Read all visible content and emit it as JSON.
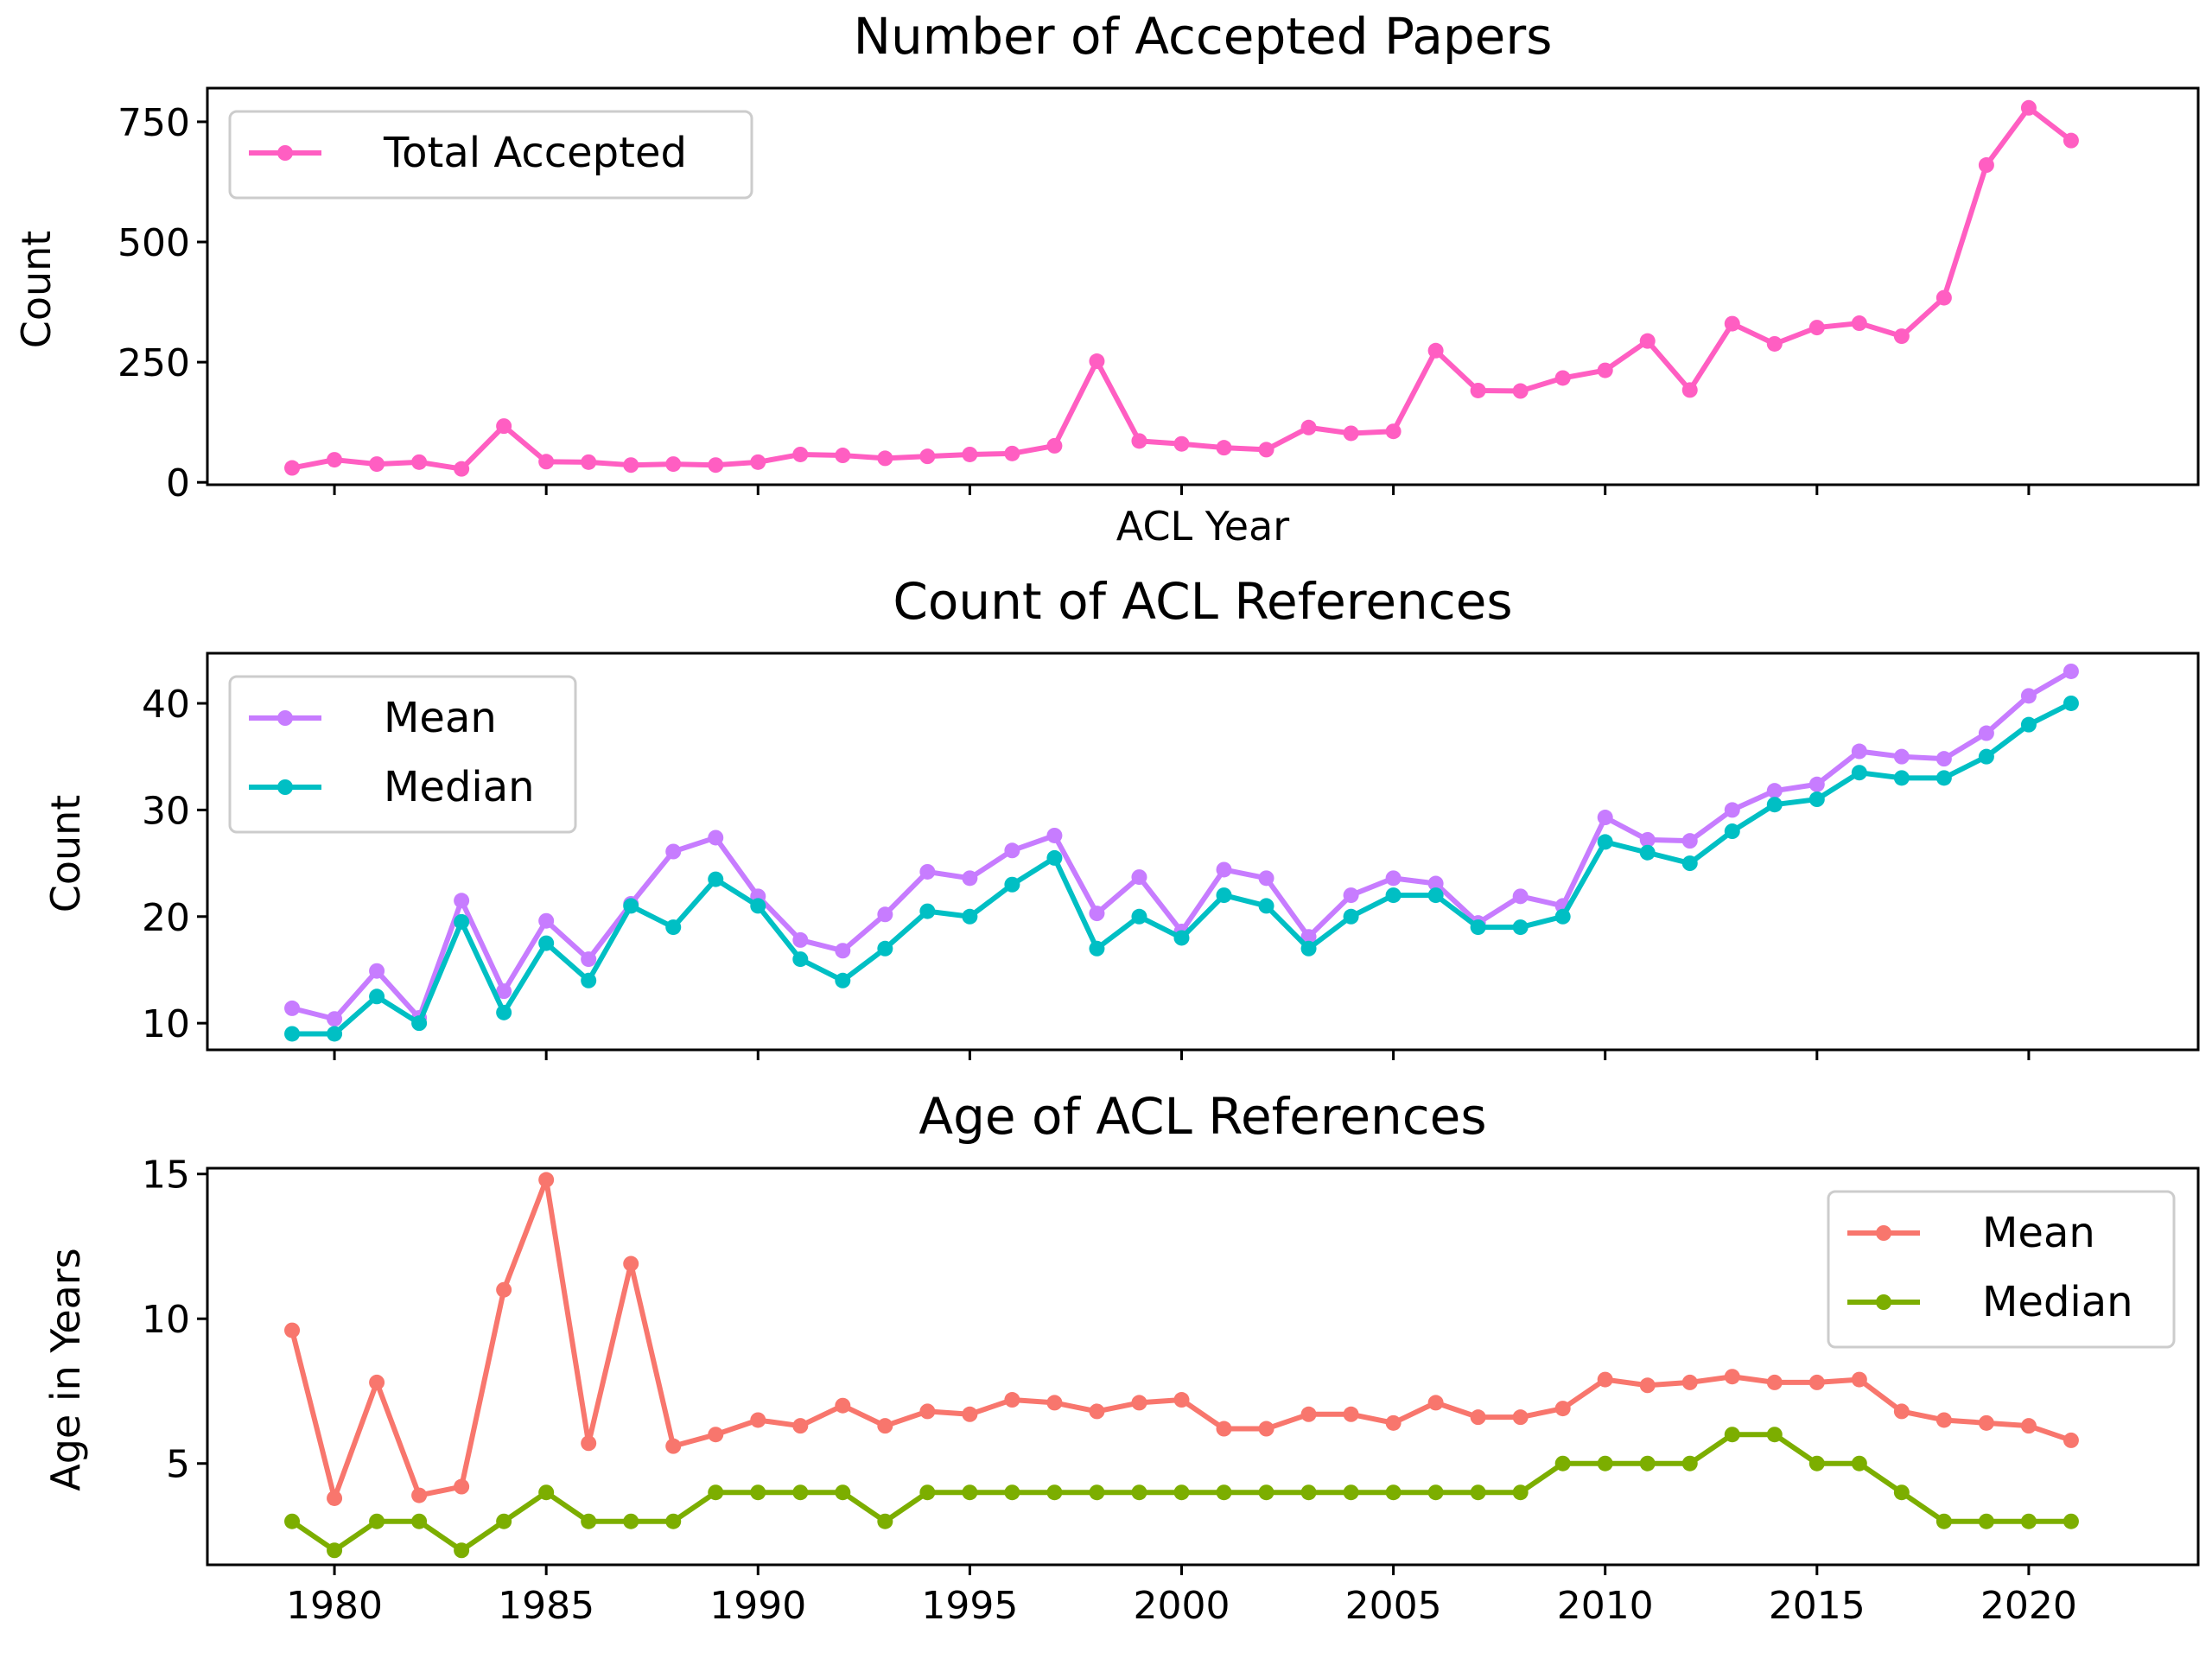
{
  "chart_data": [
    {
      "type": "line",
      "title": "Number of Accepted Papers",
      "xlabel": "ACL Year",
      "ylabel": "Count",
      "xlim": [
        1977.0,
        2024.0
      ],
      "ylim": [
        -5,
        820
      ],
      "yticks": [
        0,
        250,
        500,
        750
      ],
      "xticks": [
        1980,
        1985,
        1990,
        1995,
        2000,
        2005,
        2010,
        2015,
        2020
      ],
      "show_xtick_labels": false,
      "legend_position": "upper-left",
      "x": [
        1979,
        1980,
        1981,
        1982,
        1983,
        1984,
        1985,
        1986,
        1987,
        1988,
        1989,
        1990,
        1991,
        1992,
        1993,
        1994,
        1995,
        1996,
        1997,
        1998,
        1999,
        2000,
        2001,
        2002,
        2003,
        2004,
        2005,
        2006,
        2007,
        2008,
        2009,
        2010,
        2011,
        2012,
        2013,
        2014,
        2015,
        2016,
        2017,
        2018,
        2019,
        2020,
        2021
      ],
      "series": [
        {
          "name": "Total Accepted",
          "color": "#ff5ec2",
          "values": [
            30,
            47,
            38,
            42,
            28,
            117,
            43,
            42,
            36,
            38,
            36,
            42,
            58,
            56,
            50,
            54,
            58,
            60,
            76,
            252,
            86,
            80,
            72,
            68,
            114,
            102,
            106,
            274,
            191,
            190,
            217,
            233,
            294,
            192,
            330,
            288,
            322,
            331,
            304,
            384,
            660,
            779,
            711
          ]
        }
      ]
    },
    {
      "type": "line",
      "title": "Count of ACL References",
      "xlabel": "",
      "ylabel": "Count",
      "xlim": [
        1977.0,
        2024.0
      ],
      "ylim": [
        7.5,
        44.7
      ],
      "yticks": [
        10,
        20,
        30,
        40
      ],
      "xticks": [
        1980,
        1985,
        1990,
        1995,
        2000,
        2005,
        2010,
        2015,
        2020
      ],
      "show_xtick_labels": false,
      "legend_position": "upper-left",
      "x": [
        1979,
        1980,
        1981,
        1982,
        1983,
        1984,
        1985,
        1986,
        1987,
        1988,
        1989,
        1990,
        1991,
        1992,
        1993,
        1994,
        1995,
        1996,
        1997,
        1998,
        1999,
        2000,
        2001,
        2002,
        2003,
        2004,
        2005,
        2006,
        2007,
        2008,
        2009,
        2010,
        2011,
        2012,
        2013,
        2014,
        2015,
        2016,
        2017,
        2018,
        2019,
        2020,
        2021
      ],
      "series": [
        {
          "name": "Mean",
          "color": "#c77cff",
          "values": [
            11.4,
            10.4,
            14.9,
            10.5,
            21.5,
            13.0,
            19.6,
            16.0,
            21.2,
            26.1,
            27.4,
            21.9,
            17.8,
            16.8,
            20.2,
            24.2,
            23.6,
            26.2,
            27.6,
            20.3,
            23.7,
            18.6,
            24.4,
            23.6,
            18.1,
            22.0,
            23.6,
            23.1,
            19.4,
            21.9,
            21.0,
            29.3,
            27.2,
            27.1,
            30.0,
            31.8,
            32.4,
            35.5,
            35.0,
            34.8,
            37.2,
            40.7,
            43.0
          ]
        },
        {
          "name": "Median",
          "color": "#00bfc4",
          "values": [
            9,
            9,
            12.5,
            10,
            19.5,
            11,
            17.5,
            14,
            21,
            19,
            23.5,
            21,
            16,
            14,
            17,
            20.5,
            20,
            23,
            25.5,
            17,
            20,
            18,
            22,
            21,
            17,
            20,
            22,
            22,
            19,
            19,
            20,
            27,
            26,
            25,
            28,
            30.5,
            31,
            33.5,
            33,
            33,
            35,
            38,
            40
          ]
        }
      ]
    },
    {
      "type": "line",
      "title": "Age of ACL References",
      "xlabel": "",
      "ylabel": "Age in Years",
      "xlim": [
        1977.0,
        2024.0
      ],
      "ylim": [
        1.5,
        15.2
      ],
      "yticks": [
        5,
        10,
        15
      ],
      "xticks": [
        1980,
        1985,
        1990,
        1995,
        2000,
        2005,
        2010,
        2015,
        2020
      ],
      "show_xtick_labels": true,
      "legend_position": "upper-right",
      "x": [
        1979,
        1980,
        1981,
        1982,
        1983,
        1984,
        1985,
        1986,
        1987,
        1988,
        1989,
        1990,
        1991,
        1992,
        1993,
        1994,
        1995,
        1996,
        1997,
        1998,
        1999,
        2000,
        2001,
        2002,
        2003,
        2004,
        2005,
        2006,
        2007,
        2008,
        2009,
        2010,
        2011,
        2012,
        2013,
        2014,
        2015,
        2016,
        2017,
        2018,
        2019,
        2020,
        2021
      ],
      "series": [
        {
          "name": "Mean",
          "color": "#f8766d",
          "values": [
            9.6,
            3.8,
            7.8,
            3.9,
            4.2,
            11.0,
            14.8,
            5.7,
            11.9,
            5.6,
            6.0,
            6.5,
            6.3,
            7.0,
            6.3,
            6.8,
            6.7,
            7.2,
            7.1,
            6.8,
            7.1,
            7.2,
            6.2,
            6.2,
            6.7,
            6.7,
            6.4,
            7.1,
            6.6,
            6.6,
            6.9,
            7.9,
            7.7,
            7.8,
            8.0,
            7.8,
            7.8,
            7.9,
            6.8,
            6.5,
            6.4,
            6.3,
            5.8
          ]
        },
        {
          "name": "Median",
          "color": "#7cae00",
          "values": [
            3,
            2,
            3,
            3,
            2,
            3,
            4,
            3,
            3,
            3,
            4,
            4,
            4,
            4,
            3,
            4,
            4,
            4,
            4,
            4,
            4,
            4,
            4,
            4,
            4,
            4,
            4,
            4,
            4,
            4,
            5,
            5,
            5,
            5,
            6,
            6,
            5,
            5,
            4,
            3,
            3,
            3,
            3
          ]
        }
      ]
    }
  ]
}
